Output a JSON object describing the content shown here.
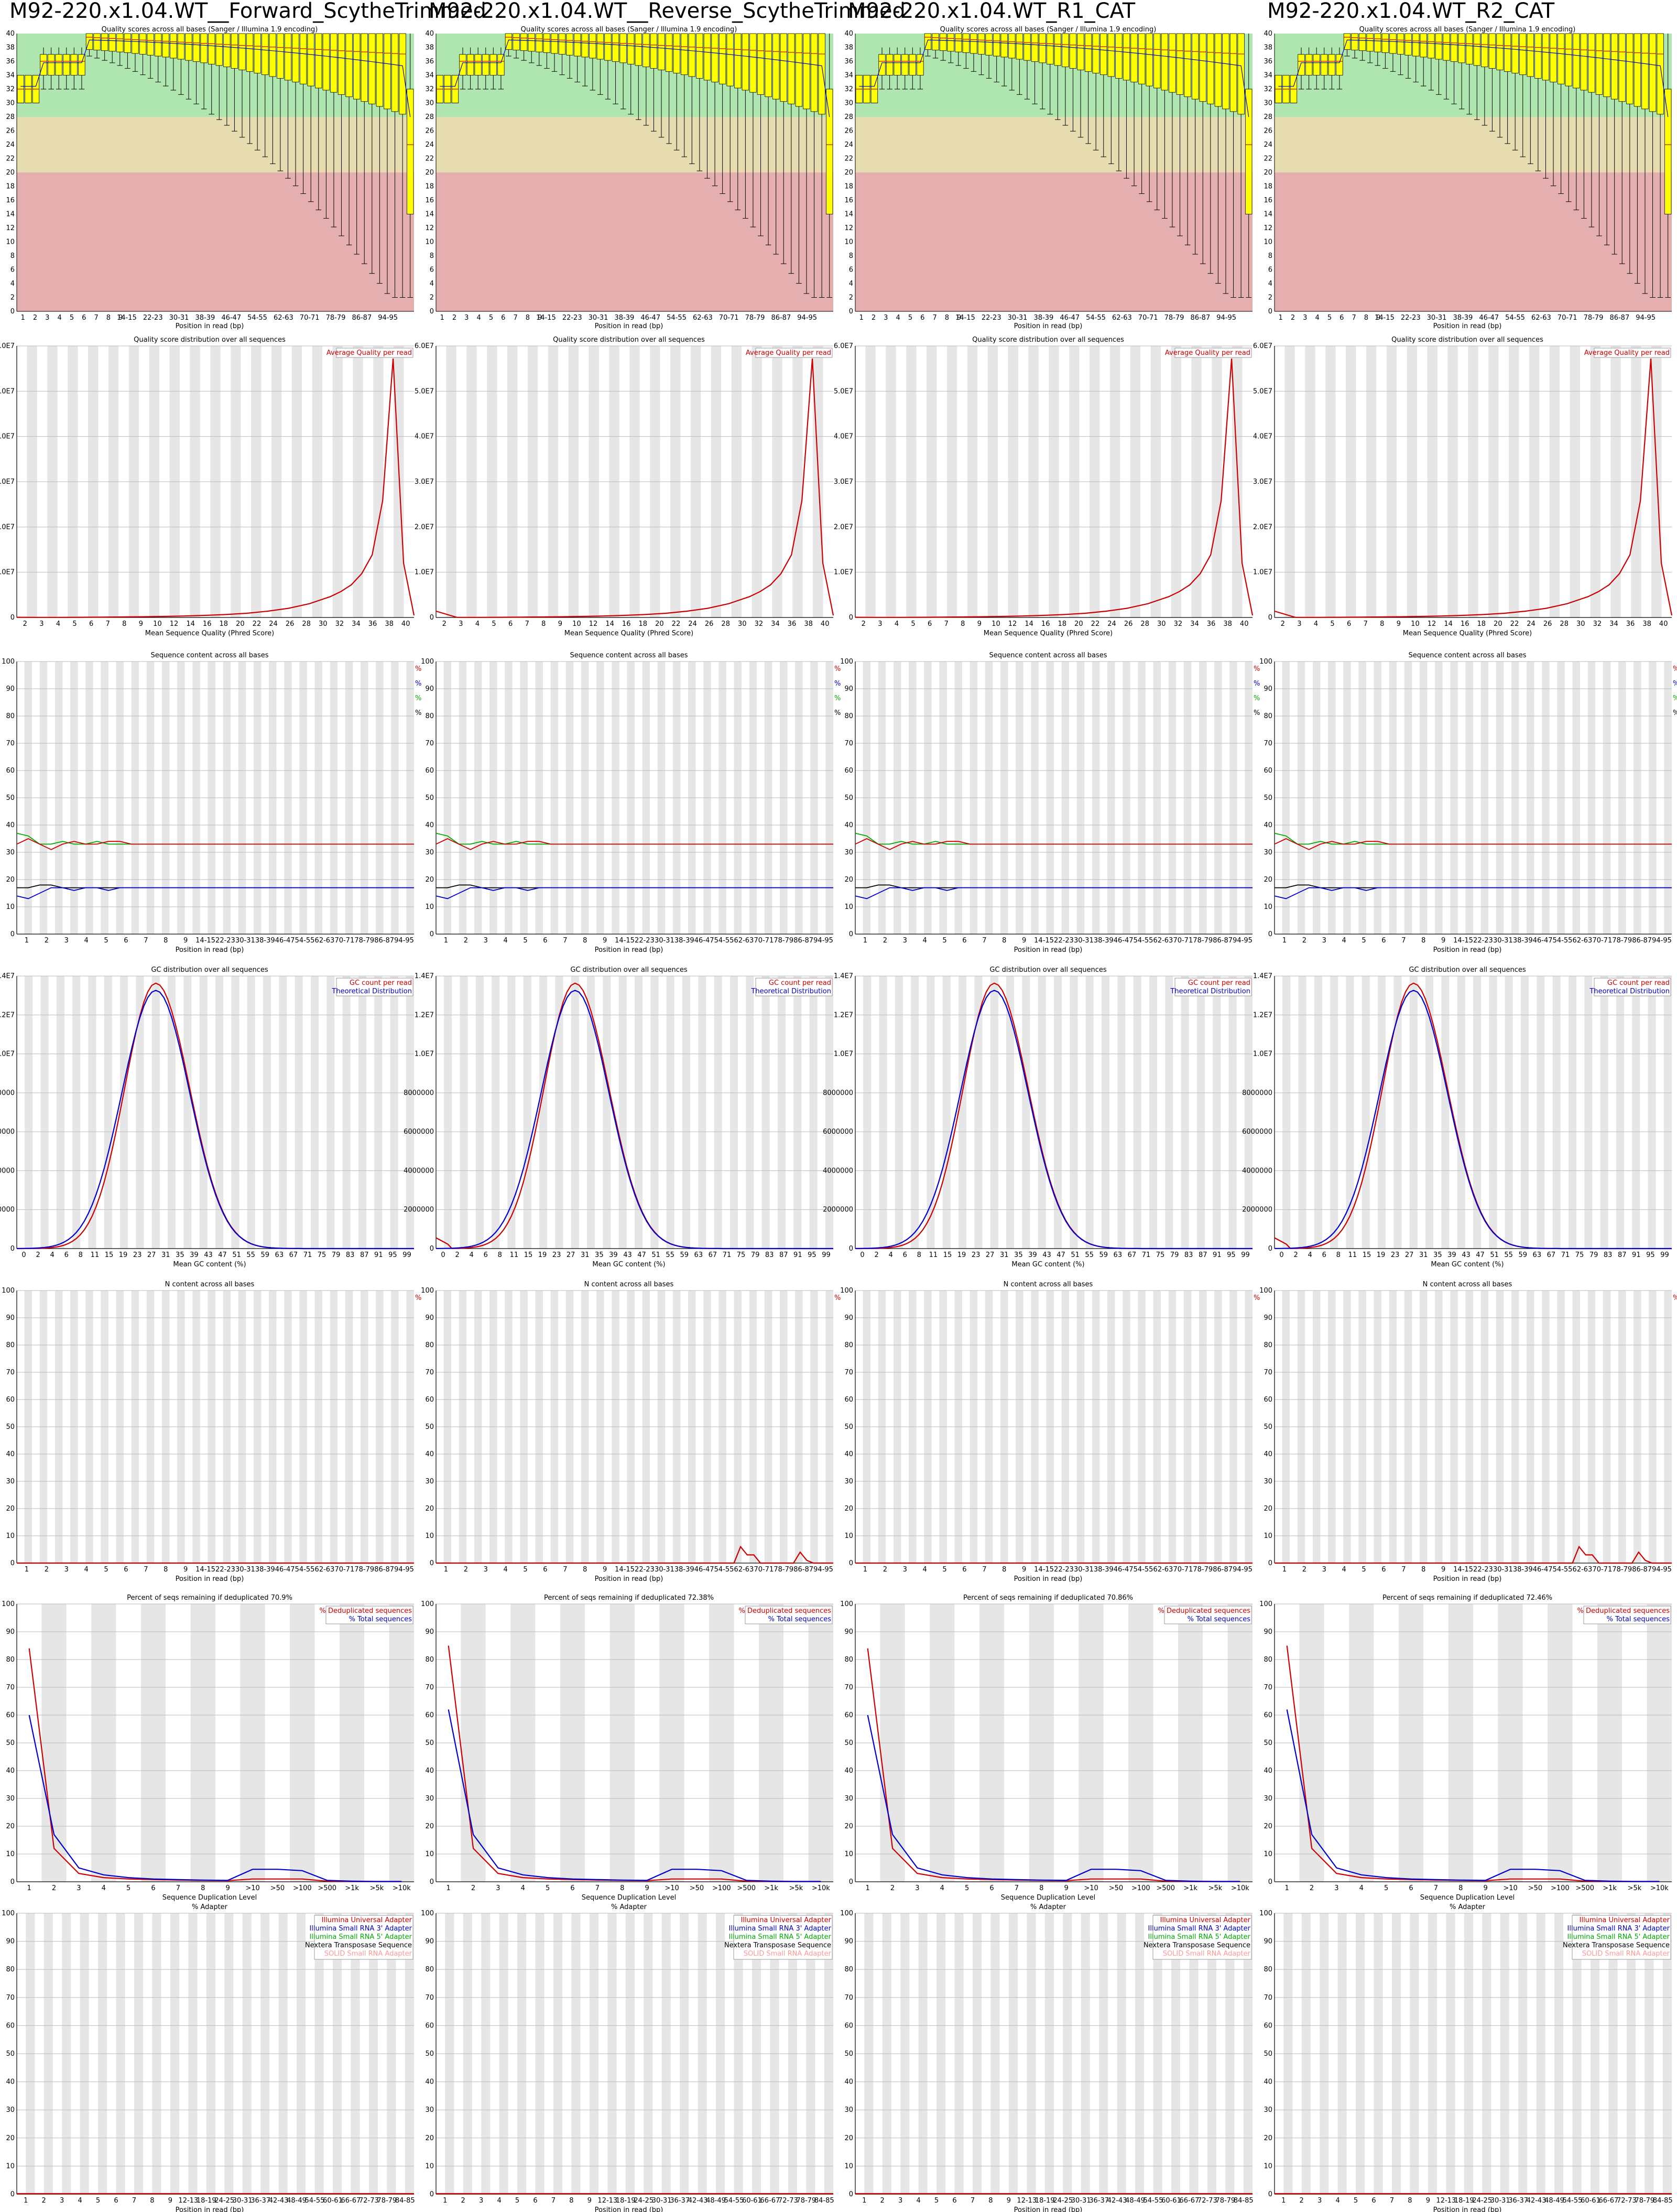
{
  "columns": [
    {
      "title": "M92-220.x1.04.WT__Forward_ScytheTrimmed",
      "dup_title": "Percent of seqs remaining if deduplicated 70.9%"
    },
    {
      "title": "M92-220.x1.04.WT__Reverse_ScytheTrimmed",
      "dup_title": "Percent of seqs remaining if deduplicated 72.38%"
    },
    {
      "title": "M92-220.x1.04.WT_R1_CAT",
      "dup_title": "Percent of seqs remaining if deduplicated 70.86%"
    },
    {
      "title": "M92-220.x1.04.WT_R2_CAT",
      "dup_title": "Percent of seqs remaining if deduplicated 72.46%"
    }
  ],
  "colors": {
    "red": "#cc0000",
    "blue": "#0000cc",
    "green": "#00aa00",
    "black": "#000000",
    "yellow": "#ffff00",
    "good": "#afe6af",
    "ok": "#e6dcaf",
    "bad": "#e6afaf",
    "stripe": "#e6e6e6"
  },
  "chart_data": [
    {
      "type": "box",
      "title": "Quality scores across all bases (Sanger / Illumina 1.9 encoding)",
      "xlabel": "Position in read (bp)",
      "ylim": [
        0,
        40
      ],
      "y_ticks": [
        "0",
        "2",
        "4",
        "6",
        "8",
        "10",
        "12",
        "14",
        "16",
        "18",
        "20",
        "22",
        "24",
        "26",
        "28",
        "30",
        "32",
        "34",
        "36",
        "38",
        "40"
      ],
      "x_ticks": [
        "1",
        "2",
        "3",
        "4",
        "5",
        "6",
        "7",
        "8",
        "9",
        "14-15",
        "22-23",
        "30-31",
        "38-39",
        "46-47",
        "54-55",
        "62-63",
        "70-71",
        "78-79",
        "86-87",
        "94-95"
      ],
      "series_mean_start": 32,
      "series_mean_end": 28
    },
    {
      "type": "line",
      "title": "Quality score distribution over all sequences",
      "xlabel": "Mean Sequence Quality (Phred Score)",
      "legend": [
        "Average Quality per read"
      ],
      "y_ticks": [
        "0",
        "1.0E7",
        "2.0E7",
        "3.0E7",
        "4.0E7",
        "5.0E7",
        "6.0E7"
      ],
      "x_ticks": [
        "2",
        "3",
        "4",
        "5",
        "6",
        "7",
        "8",
        "9",
        "10",
        "12",
        "14",
        "16",
        "18",
        "20",
        "22",
        "24",
        "26",
        "28",
        "30",
        "32",
        "34",
        "36",
        "38",
        "40"
      ],
      "x": [
        2,
        4,
        6,
        8,
        10,
        12,
        14,
        16,
        18,
        20,
        22,
        24,
        26,
        28,
        30,
        32,
        33,
        34,
        35,
        36,
        37,
        38,
        39,
        40
      ],
      "values": [
        0.05,
        0.02,
        0.03,
        0.05,
        0.08,
        0.12,
        0.18,
        0.25,
        0.35,
        0.5,
        0.7,
        1.0,
        1.5,
        2.2,
        3.3,
        5.0,
        6.2,
        7.8,
        10.5,
        15,
        28,
        62,
        13,
        0.5
      ],
      "ylim": [
        0,
        65
      ]
    },
    {
      "type": "line",
      "title": "Sequence content across all bases",
      "xlabel": "Position in read (bp)",
      "legend": [
        "%T",
        "%C",
        "%A",
        "%G"
      ],
      "y_ticks": [
        "0",
        "10",
        "20",
        "30",
        "40",
        "50",
        "60",
        "70",
        "80",
        "90",
        "100"
      ],
      "x_ticks": [
        "1",
        "2",
        "3",
        "4",
        "5",
        "6",
        "7",
        "8",
        "9",
        "14-15",
        "22-23",
        "30-31",
        "38-39",
        "46-47",
        "54-55",
        "62-63",
        "70-71",
        "78-79",
        "86-87",
        "94-95"
      ],
      "ylim": [
        0,
        100
      ],
      "series": [
        {
          "name": "%G",
          "values": [
            37,
            36,
            33,
            33,
            34,
            33,
            33,
            34,
            33,
            33,
            33,
            33,
            33,
            33,
            33,
            33,
            33,
            33,
            33,
            33
          ]
        },
        {
          "name": "%A",
          "values": [
            33,
            35,
            33,
            31,
            33,
            34,
            33,
            33,
            34,
            34,
            33,
            33,
            33,
            33,
            33,
            33,
            33,
            33,
            33,
            33
          ]
        },
        {
          "name": "%T",
          "values": [
            17,
            17,
            18,
            18,
            17,
            17,
            17,
            17,
            17,
            17,
            17,
            17,
            17,
            17,
            17,
            17,
            17,
            17,
            17,
            17
          ]
        },
        {
          "name": "%C",
          "values": [
            14,
            13,
            15,
            17,
            17,
            16,
            17,
            17,
            16,
            17,
            17,
            17,
            17,
            17,
            17,
            17,
            17,
            17,
            17,
            17
          ]
        }
      ]
    },
    {
      "type": "line",
      "title": "GC distribution over all sequences",
      "xlabel": "Mean GC content (%)",
      "legend": [
        "GC count per read",
        "Theoretical Distribution"
      ],
      "y_ticks": [
        "0",
        "2000000",
        "4000000",
        "6000000",
        "8000000",
        "1.0E7",
        "1.2E7",
        "1.4E7"
      ],
      "x_ticks": [
        "0",
        "2",
        "4",
        "6",
        "8",
        "11",
        "15",
        "19",
        "23",
        "27",
        "31",
        "35",
        "39",
        "43",
        "47",
        "51",
        "55",
        "59",
        "63",
        "67",
        "71",
        "75",
        "79",
        "83",
        "87",
        "91",
        "95",
        "99"
      ],
      "ylim": [
        0,
        15
      ],
      "gc_mean": 35,
      "gc_sd": 8.5,
      "gc_peak": 14.8,
      "theory_peak": 14.4
    },
    {
      "type": "line",
      "title": "N content across all bases",
      "xlabel": "Position in read (bp)",
      "legend": [
        "%N"
      ],
      "y_ticks": [
        "0",
        "10",
        "20",
        "30",
        "40",
        "50",
        "60",
        "70",
        "80",
        "90",
        "100"
      ],
      "x_ticks": [
        "1",
        "2",
        "3",
        "4",
        "5",
        "6",
        "7",
        "8",
        "9",
        "14-15",
        "22-23",
        "30-31",
        "38-39",
        "46-47",
        "54-55",
        "62-63",
        "70-71",
        "78-79",
        "86-87",
        "94-95"
      ],
      "ylim": [
        0,
        100
      ]
    },
    {
      "type": "line",
      "title": "Percent of seqs remaining if deduplicated",
      "xlabel": "Sequence Duplication Level",
      "legend": [
        "% Deduplicated sequences",
        "% Total sequences"
      ],
      "y_ticks": [
        "0",
        "10",
        "20",
        "30",
        "40",
        "50",
        "60",
        "70",
        "80",
        "90",
        "100"
      ],
      "x_ticks": [
        "1",
        "2",
        "3",
        "4",
        "5",
        "6",
        "7",
        "8",
        "9",
        ">10",
        ">50",
        ">100",
        ">500",
        ">1k",
        ">5k",
        ">10k"
      ],
      "ylim": [
        0,
        100
      ],
      "series": [
        {
          "name": "% Deduplicated sequences",
          "values": [
            84,
            12,
            3,
            1.5,
            1,
            0.8,
            0.6,
            0.5,
            0.4,
            1,
            1,
            1,
            0.2,
            0.1,
            0.1,
            0.1
          ]
        },
        {
          "name": "% Total sequences",
          "values": [
            60,
            17,
            5,
            2.5,
            1.5,
            1,
            0.8,
            0.6,
            0.5,
            4.5,
            4.5,
            4,
            0.5,
            0.2,
            0.1,
            0.1
          ]
        }
      ]
    },
    {
      "type": "line",
      "title": "% Adapter",
      "xlabel": "Position in read (bp)",
      "legend": [
        "Illumina Universal Adapter",
        "Illumina Small RNA 3' Adapter",
        "Illumina Small RNA 5' Adapter",
        "Nextera Transposase Sequence",
        "SOLID Small RNA Adapter"
      ],
      "y_ticks": [
        "0",
        "10",
        "20",
        "30",
        "40",
        "50",
        "60",
        "70",
        "80",
        "90",
        "100"
      ],
      "x_ticks": [
        "1",
        "2",
        "3",
        "4",
        "5",
        "6",
        "7",
        "8",
        "9",
        "12-13",
        "18-19",
        "24-25",
        "30-31",
        "36-37",
        "42-43",
        "48-49",
        "54-55",
        "60-61",
        "66-67",
        "72-73",
        "78-79",
        "84-85"
      ],
      "ylim": [
        0,
        100
      ]
    }
  ]
}
